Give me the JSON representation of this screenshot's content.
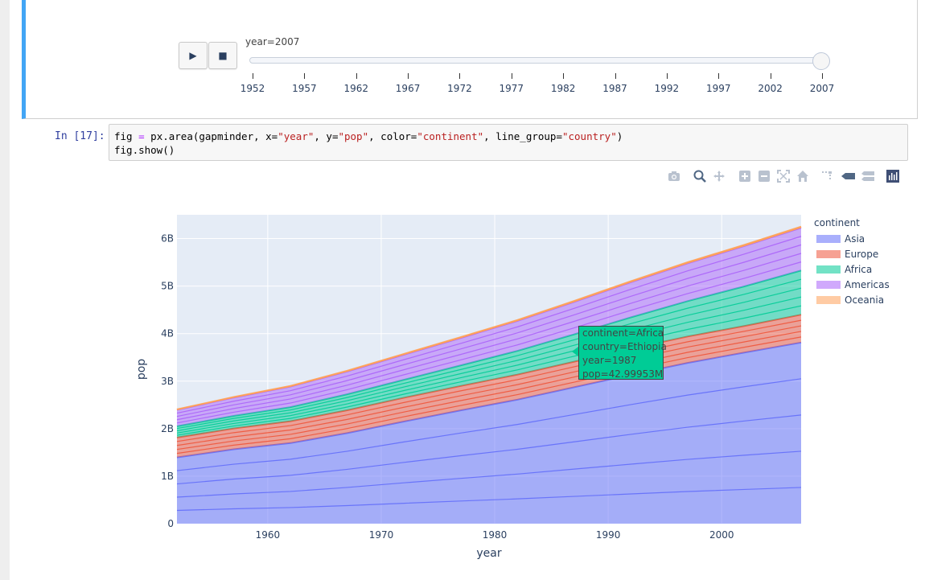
{
  "slider": {
    "label": "year=2007",
    "play_icon": "▶",
    "stop_icon": "■",
    "ticks": [
      "1952",
      "1957",
      "1962",
      "1967",
      "1972",
      "1977",
      "1982",
      "1987",
      "1992",
      "1997",
      "2002",
      "2007"
    ],
    "value": "2007"
  },
  "cell": {
    "prompt": "In [17]:",
    "code_line1_parts": [
      "fig ",
      "=",
      " px.area(gapminder, x=",
      "\"year\"",
      ", y=",
      "\"pop\"",
      ", color=",
      "\"continent\"",
      ", line_group=",
      "\"country\"",
      ")"
    ],
    "code_line2": "fig.show()"
  },
  "modebar": {
    "icons": [
      "camera-icon",
      "zoom-icon",
      "pan-icon",
      "zoom-in-icon",
      "zoom-out-icon",
      "autoscale-icon",
      "reset-axes-icon",
      "spike-lines-icon",
      "hover-closest-icon",
      "hover-compare-icon",
      "plotly-logo-icon"
    ]
  },
  "legend": {
    "title": "continent",
    "items": [
      {
        "label": "Asia",
        "color": "#636efa"
      },
      {
        "label": "Europe",
        "color": "#ef553b"
      },
      {
        "label": "Africa",
        "color": "#00cc96"
      },
      {
        "label": "Americas",
        "color": "#ab63fa"
      },
      {
        "label": "Oceania",
        "color": "#ffa15a"
      }
    ]
  },
  "tooltip": {
    "line1": "continent=Africa",
    "line2": "country=Ethiopia",
    "line3": "year=1987",
    "line4": "pop=42.99953M"
  },
  "chart_data": {
    "type": "area",
    "xlabel": "year",
    "ylabel": "pop",
    "xlim": [
      1952,
      2007
    ],
    "ylim": [
      0,
      6500000000
    ],
    "x_ticks": [
      "1960",
      "1970",
      "1980",
      "1990",
      "2000"
    ],
    "y_ticks": [
      "0",
      "1B",
      "2B",
      "3B",
      "4B",
      "5B",
      "6B"
    ],
    "x": [
      1952,
      1957,
      1962,
      1967,
      1972,
      1977,
      1982,
      1987,
      1992,
      1997,
      2002,
      2007
    ],
    "stacking": "stacked",
    "series": [
      {
        "name": "Asia",
        "color": "#636efa",
        "values": [
          1395000000,
          1565000000,
          1696000000,
          1906000000,
          2150000000,
          2384000000,
          2610000000,
          2871000000,
          3133000000,
          3383000000,
          3602000000,
          3812000000
        ]
      },
      {
        "name": "Europe",
        "color": "#ef553b",
        "values": [
          418000000,
          438000000,
          460000000,
          481000000,
          500000000,
          514000000,
          527000000,
          538000000,
          550000000,
          556000000,
          558000000,
          586000000
        ]
      },
      {
        "name": "Africa",
        "color": "#00cc96",
        "values": [
          237000000,
          265000000,
          296000000,
          336000000,
          378000000,
          432000000,
          499000000,
          575000000,
          659000000,
          744000000,
          834000000,
          930000000
        ]
      },
      {
        "name": "Americas",
        "color": "#ab63fa",
        "values": [
          345000000,
          386000000,
          433000000,
          480000000,
          529000000,
          578000000,
          631000000,
          683000000,
          739000000,
          796000000,
          849000000,
          899000000
        ]
      },
      {
        "name": "Oceania",
        "color": "#ffa15a",
        "values": [
          10700000,
          11900000,
          13300000,
          15000000,
          16000000,
          17600000,
          18700000,
          20000000,
          21800000,
          23500000,
          25200000,
          24500000
        ]
      }
    ]
  }
}
